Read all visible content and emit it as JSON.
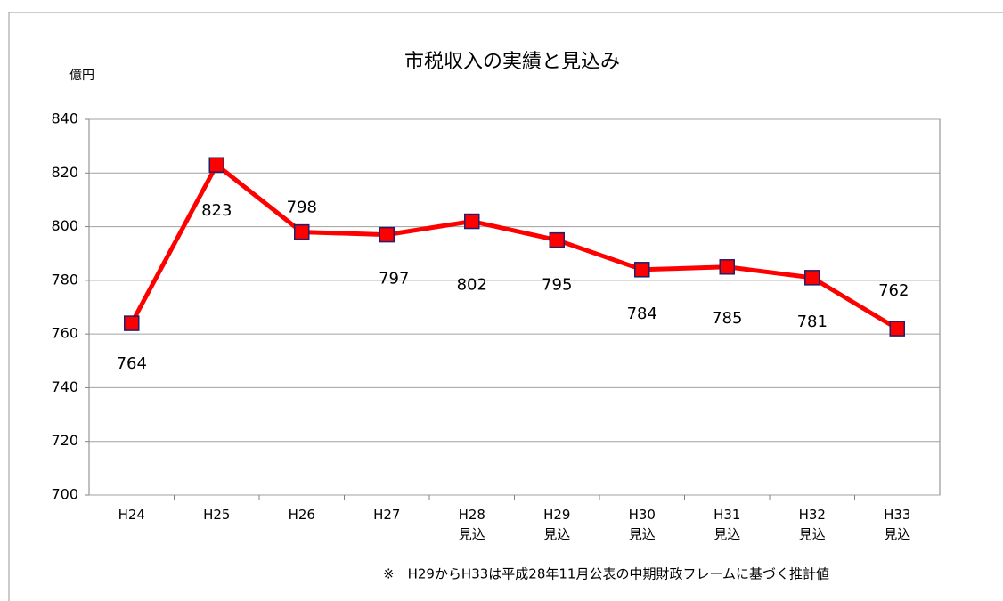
{
  "chart_data": {
    "type": "line",
    "title": "市税収入の実績と見込み",
    "y_label": "億円",
    "categories": [
      "H24",
      "H25",
      "H26",
      "H27",
      "H28\n見込",
      "H29\n見込",
      "H30\n見込",
      "H31\n見込",
      "H32\n見込",
      "H33\n見込"
    ],
    "series": [
      {
        "name": "市税収入",
        "color": "#ff0000",
        "marker_color": "#ff0000",
        "marker_edge": "#1f1f6e",
        "values": [
          764,
          823,
          798,
          797,
          802,
          795,
          784,
          785,
          781,
          762
        ]
      }
    ],
    "ylim": [
      700,
      840
    ],
    "yticks": [
      700,
      720,
      740,
      760,
      780,
      800,
      820,
      840
    ],
    "grid": true,
    "note": "※　H29からH33は平成28年11月公表の中期財政フレームに基づく推計値"
  }
}
